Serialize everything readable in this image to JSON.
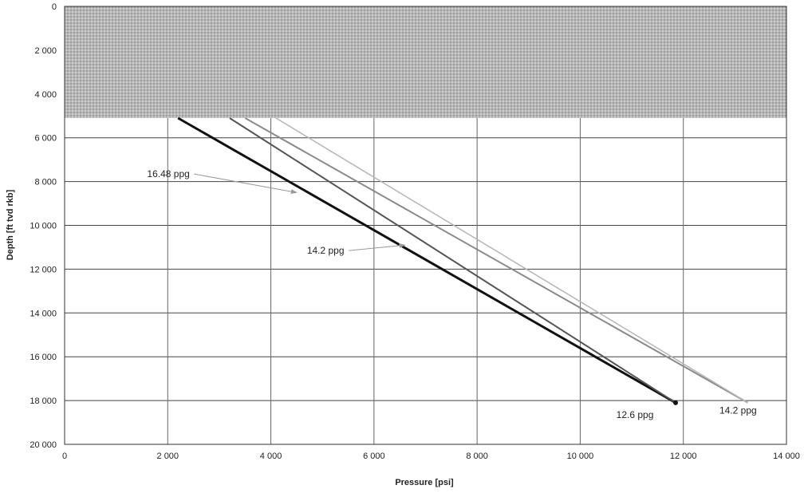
{
  "chart_data": {
    "type": "line",
    "xlabel": "Pressure [psi]",
    "ylabel": "Depth [ft tvd rkb]",
    "xlim": [
      0,
      14000
    ],
    "ylim": [
      0,
      20000
    ],
    "y_inverted": true,
    "grid": true,
    "x_ticks": [
      "0",
      "2 000",
      "4 000",
      "6 000",
      "8 000",
      "10 000",
      "12 000",
      "14 000"
    ],
    "x_tick_values": [
      0,
      2000,
      4000,
      6000,
      8000,
      10000,
      12000,
      14000
    ],
    "y_ticks": [
      "0",
      "2 000",
      "4 000",
      "6 000",
      "8 000",
      "10 000",
      "12 000",
      "14 000",
      "16 000",
      "18 000",
      "20 000"
    ],
    "y_tick_values": [
      0,
      2000,
      4000,
      6000,
      8000,
      10000,
      12000,
      14000,
      16000,
      18000,
      20000
    ],
    "shaded_band": {
      "y_from": 0,
      "y_to": 5100,
      "color": "#a9a9a9"
    },
    "series": [
      {
        "label": "12.6 ppg",
        "color": "#111111",
        "width": 3,
        "x": [
          2200,
          11850
        ],
        "y": [
          5100,
          18100
        ]
      },
      {
        "label": "16.48 ppg",
        "color": "#555555",
        "width": 2,
        "x": [
          3200,
          11850
        ],
        "y": [
          5100,
          18100
        ]
      },
      {
        "label": "14.2 ppg (upper)",
        "color": "#8a8a8a",
        "width": 2,
        "x": [
          3500,
          13250
        ],
        "y": [
          5100,
          18100
        ]
      },
      {
        "label": "14.2 ppg (lower)",
        "color": "#b5b5b5",
        "width": 1.5,
        "x": [
          4100,
          13250
        ],
        "y": [
          5100,
          18100
        ]
      }
    ],
    "annotations": [
      {
        "text": "16.48 ppg",
        "x": 1600,
        "y": 7800,
        "arrow_to": [
          4500,
          8500
        ]
      },
      {
        "text": "14.2 ppg",
        "x": 4700,
        "y": 11300,
        "arrow_to": [
          6600,
          10900
        ]
      },
      {
        "text": "12.6 ppg",
        "x": 10700,
        "y": 18800
      },
      {
        "text": "14.2 ppg",
        "x": 12700,
        "y": 18600
      }
    ]
  }
}
